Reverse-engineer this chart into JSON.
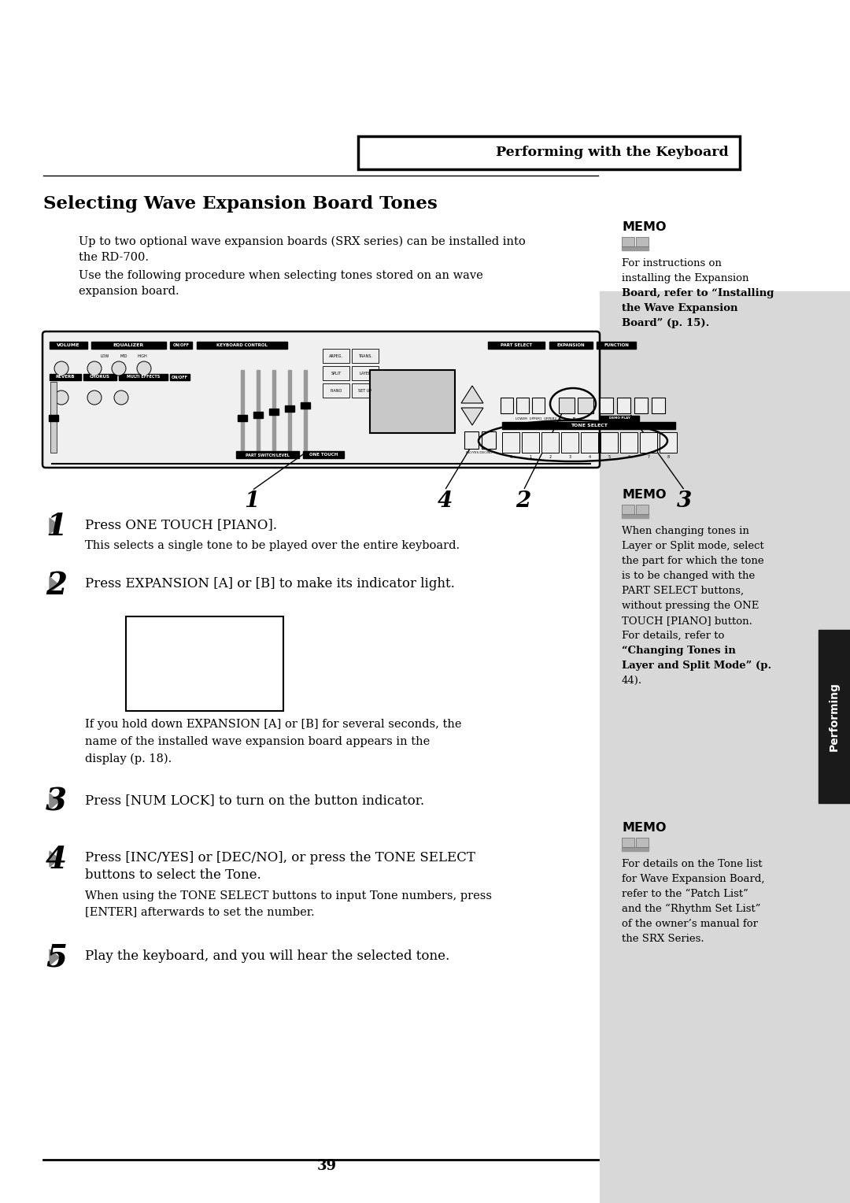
{
  "bg_color": "#ffffff",
  "sidebar_color": "#d8d8d8",
  "tab_color": "#1a1a1a",
  "page_title": "Performing with the Keyboard",
  "section_title": "Selecting Wave Expansion Board Tones",
  "intro_line1": "Up to two optional wave expansion boards (SRX series) can be installed into",
  "intro_line2": "the RD-700.",
  "intro_line3": "Use the following procedure when selecting tones stored on an wave",
  "intro_line4": "expansion board.",
  "memo1_lines": [
    "For instructions on",
    "installing the Expansion",
    "Board, refer to “Installing",
    "the Wave Expansion",
    "Board” (p. 15)."
  ],
  "memo1_bold": [
    2,
    3,
    4
  ],
  "memo2_lines": [
    "When changing tones in",
    "Layer or Split mode, select",
    "the part for which the tone",
    "is to be changed with the",
    "PART SELECT buttons,",
    "without pressing the ONE",
    "TOUCH [PIANO] button.",
    "For details, refer to",
    "“Changing Tones in",
    "Layer and Split Mode” (p.",
    "44)."
  ],
  "memo2_bold": [
    8,
    9
  ],
  "memo3_lines": [
    "For details on the Tone list",
    "for Wave Expansion Board,",
    "refer to the “Patch List”",
    "and the “Rhythm Set List”",
    "of the owner’s manual for",
    "the SRX Series."
  ],
  "memo3_bold": [],
  "step1_main": "Press ONE TOUCH [PIANO].",
  "step1_sub": "This selects a single tone to be played over the entire keyboard.",
  "step2_main": "Press EXPANSION [A] or [B] to make its indicator light.",
  "step2_sub1": "If you hold down EXPANSION [A] or [B] for several seconds, the",
  "step2_sub2": "name of the installed wave expansion board appears in the",
  "step2_sub3": "display (p. 18).",
  "step3_main": "Press [NUM LOCK] to turn on the button indicator.",
  "step4_main1": "Press [INC/YES] or [DEC/NO], or press the TONE SELECT",
  "step4_main2": "buttons to select the Tone.",
  "step4_sub1": "When using the TONE SELECT buttons to input Tone numbers, press",
  "step4_sub2": "[ENTER] afterwards to set the number.",
  "step5_main": "Play the keyboard, and you will hear the selected tone.",
  "page_number": "39",
  "tab_label": "Performing"
}
